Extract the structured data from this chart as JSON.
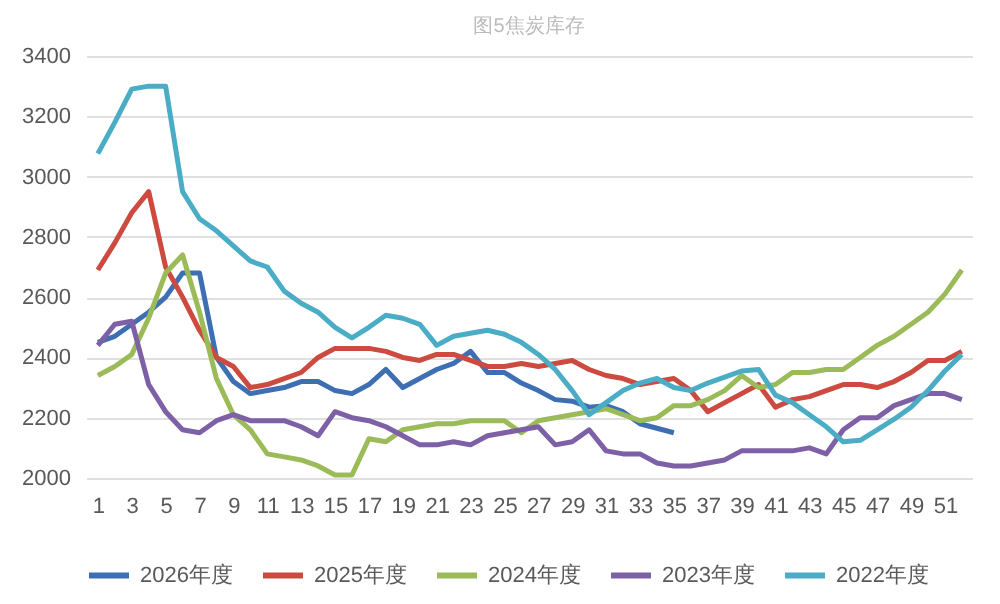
{
  "chart_data": {
    "type": "line",
    "title": "图5焦炭库存",
    "x": [
      1,
      2,
      3,
      4,
      5,
      6,
      7,
      8,
      9,
      10,
      11,
      12,
      13,
      14,
      15,
      16,
      17,
      18,
      19,
      20,
      21,
      22,
      23,
      24,
      25,
      26,
      27,
      28,
      29,
      30,
      31,
      32,
      33,
      34,
      35,
      36,
      37,
      38,
      39,
      40,
      41,
      42,
      43,
      44,
      45,
      46,
      47,
      48,
      49,
      50,
      51,
      52
    ],
    "series": [
      {
        "name": "2026年度",
        "color": "#3f6fb3",
        "values": [
          2450,
          2470,
          2510,
          2550,
          2600,
          2680,
          2680,
          2400,
          2320,
          2280,
          2290,
          2300,
          2320,
          2320,
          2290,
          2280,
          2310,
          2360,
          2300,
          2330,
          2360,
          2380,
          2420,
          2350,
          2350,
          2315,
          2290,
          2260,
          2255,
          2235,
          2240,
          2220,
          2180,
          2165,
          2150,
          null,
          null,
          null,
          null,
          null,
          null,
          null,
          null,
          null,
          null,
          null,
          null,
          null,
          null,
          null,
          null,
          null
        ]
      },
      {
        "name": "2025年度",
        "color": "#cc4a3f",
        "values": [
          2690,
          2780,
          2880,
          2950,
          2700,
          2600,
          2490,
          2400,
          2370,
          2300,
          2310,
          2330,
          2350,
          2400,
          2430,
          2430,
          2430,
          2420,
          2400,
          2390,
          2410,
          2410,
          2390,
          2370,
          2370,
          2380,
          2370,
          2380,
          2390,
          2360,
          2340,
          2330,
          2310,
          2320,
          2330,
          2290,
          2220,
          2250,
          2280,
          2310,
          2235,
          2260,
          2270,
          2290,
          2310,
          2310,
          2300,
          2320,
          2350,
          2390,
          2390,
          2420
        ]
      },
      {
        "name": "2024年度",
        "color": "#9bbb59",
        "values": [
          2340,
          2370,
          2410,
          2530,
          2680,
          2740,
          2550,
          2330,
          2210,
          2160,
          2080,
          2070,
          2060,
          2040,
          2010,
          2010,
          2130,
          2120,
          2160,
          2170,
          2180,
          2180,
          2190,
          2190,
          2190,
          2150,
          2190,
          2200,
          2210,
          2220,
          2230,
          2210,
          2190,
          2200,
          2240,
          2240,
          2260,
          2290,
          2340,
          2300,
          2310,
          2350,
          2350,
          2360,
          2360,
          2400,
          2440,
          2470,
          2510,
          2550,
          2610,
          2690
        ]
      },
      {
        "name": "2023年度",
        "color": "#7d60a6",
        "values": [
          2440,
          2510,
          2520,
          2310,
          2220,
          2160,
          2150,
          2190,
          2210,
          2190,
          2190,
          2190,
          2170,
          2140,
          2220,
          2200,
          2190,
          2170,
          2140,
          2110,
          2110,
          2120,
          2110,
          2140,
          2150,
          2160,
          2170,
          2110,
          2120,
          2160,
          2090,
          2080,
          2080,
          2050,
          2040,
          2040,
          2050,
          2060,
          2090,
          2090,
          2090,
          2090,
          2100,
          2080,
          2160,
          2200,
          2200,
          2240,
          2260,
          2280,
          2280,
          2260
        ]
      },
      {
        "name": "2022年度",
        "color": "#4bacc6",
        "values": [
          3076,
          3180,
          3290,
          3300,
          3300,
          2950,
          2860,
          2820,
          2770,
          2720,
          2700,
          2620,
          2580,
          2550,
          2500,
          2465,
          2500,
          2540,
          2530,
          2510,
          2440,
          2470,
          2480,
          2490,
          2477,
          2450,
          2410,
          2360,
          2290,
          2210,
          2250,
          2290,
          2315,
          2330,
          2300,
          2290,
          2315,
          2335,
          2355,
          2360,
          2275,
          2250,
          2210,
          2170,
          2120,
          2125,
          2160,
          2195,
          2235,
          2290,
          2355,
          2410
        ]
      }
    ],
    "xlim": [
      0.3,
      52.6
    ],
    "xticks": [
      1,
      3,
      5,
      7,
      9,
      11,
      13,
      15,
      17,
      19,
      21,
      23,
      25,
      27,
      29,
      31,
      33,
      35,
      37,
      39,
      41,
      43,
      45,
      47,
      49,
      51
    ],
    "ylim": [
      2000,
      3400
    ],
    "yticks": [
      2000,
      2200,
      2400,
      2600,
      2800,
      3000,
      3200,
      3400
    ],
    "grid": "y",
    "legend": "bottom",
    "marker": "none",
    "line_style": "solid"
  }
}
